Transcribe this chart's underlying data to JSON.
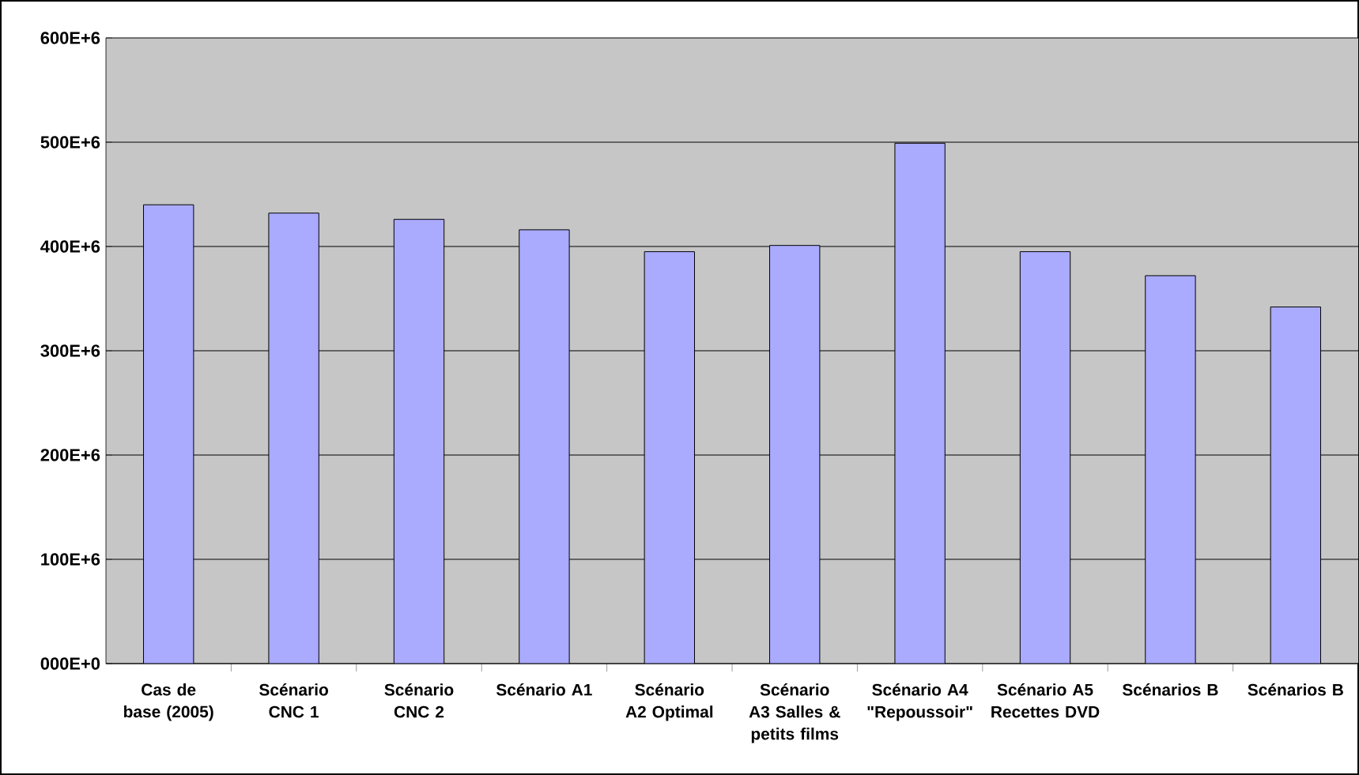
{
  "chart_data": {
    "type": "bar",
    "categories": [
      "Cas de base (2005)",
      "Scénario CNC 1",
      "Scénario CNC 2",
      "Scénario A1",
      "Scénario A2 Optimal",
      "Scénario A3 Salles & petits films",
      "Scénario A4 \"Repoussoir\"",
      "Scénario A5 Recettes DVD",
      "Scénarios B",
      "Scénarios B"
    ],
    "values": [
      440000000,
      432000000,
      426000000,
      416000000,
      395000000,
      401000000,
      499000000,
      395000000,
      372000000,
      342000000
    ],
    "color": "#aaaaff",
    "ylim": [
      0,
      600000000
    ],
    "yticks": [
      {
        "value": 0,
        "label": "000E+0"
      },
      {
        "value": 100000000,
        "label": "100E+6"
      },
      {
        "value": 200000000,
        "label": "200E+6"
      },
      {
        "value": 300000000,
        "label": "300E+6"
      },
      {
        "value": 400000000,
        "label": "400E+6"
      },
      {
        "value": 500000000,
        "label": "500E+6"
      },
      {
        "value": 600000000,
        "label": "600E+6"
      }
    ],
    "grid": "y"
  }
}
